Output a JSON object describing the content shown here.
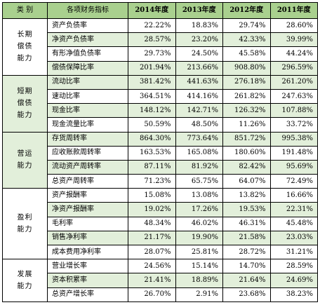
{
  "header": {
    "category": "类  别",
    "indicator": "各项财务指标",
    "years": [
      "2014年度",
      "2013年度",
      "2012年度",
      "2011年度"
    ]
  },
  "groups": [
    {
      "category": "长期偿债能力",
      "rows": [
        {
          "name": "资产负债率",
          "values": [
            "22.22%",
            "18.83%",
            "29.74%",
            "28.60%"
          ]
        },
        {
          "name": "净资产负债率",
          "values": [
            "28.57%",
            "23.20%",
            "42.33%",
            "39.99%"
          ]
        },
        {
          "name": "有形净值负债率",
          "values": [
            "29.73%",
            "24.50%",
            "45.58%",
            "44.24%"
          ]
        },
        {
          "name": "偿债保障比率",
          "values": [
            "201.94%",
            "213.66%",
            "908.80%",
            "296.59%"
          ]
        }
      ]
    },
    {
      "category": "短期偿债能力",
      "rows": [
        {
          "name": "流动比率",
          "values": [
            "381.42%",
            "441.63%",
            "276.18%",
            "261.20%"
          ]
        },
        {
          "name": "速动比率",
          "values": [
            "364.51%",
            "414.16%",
            "261.82%",
            "247.63%"
          ]
        },
        {
          "name": "现金比率",
          "values": [
            "148.12%",
            "142.71%",
            "126.32%",
            "107.88%"
          ]
        },
        {
          "name": "现金流量比率",
          "values": [
            "50.59%",
            "48.50%",
            "11.26%",
            "33.72%"
          ]
        }
      ]
    },
    {
      "category": "营运能力",
      "rows": [
        {
          "name": "存货周转率",
          "values": [
            "864.30%",
            "773.64%",
            "851.72%",
            "995.38%"
          ]
        },
        {
          "name": "应收账款周转率",
          "values": [
            "163.53%",
            "165.08%",
            "180.60%",
            "191.48%"
          ]
        },
        {
          "name": "流动资产周转率",
          "values": [
            "87.11%",
            "81.92%",
            "82.42%",
            "95.69%"
          ]
        },
        {
          "name": "总资产周转率",
          "values": [
            "71.23%",
            "65.75%",
            "64.07%",
            "72.49%"
          ]
        }
      ]
    },
    {
      "category": "盈利能力",
      "rows": [
        {
          "name": "资产报酬率",
          "values": [
            "15.08%",
            "13.08%",
            "13.82%",
            "16.66%"
          ]
        },
        {
          "name": "净资产报酬率",
          "values": [
            "19.02%",
            "17.26%",
            "19.53%",
            "22.31%"
          ]
        },
        {
          "name": "毛利率",
          "values": [
            "48.34%",
            "46.02%",
            "46.31%",
            "45.48%"
          ]
        },
        {
          "name": "销售净利率",
          "values": [
            "21.17%",
            "19.90%",
            "21.58%",
            "23.03%"
          ]
        },
        {
          "name": "成本费用净利率",
          "values": [
            "28.07%",
            "25.81%",
            "28.72%",
            "31.21%"
          ]
        }
      ]
    },
    {
      "category": "发展能力",
      "rows": [
        {
          "name": "营业增长率",
          "values": [
            "24.56%",
            "15.14%",
            "14.70%",
            "28.59%"
          ]
        },
        {
          "name": "资本积累率",
          "values": [
            "21.41%",
            "18.89%",
            "21.64%",
            "24.69%"
          ]
        },
        {
          "name": "总资产增长率",
          "values": [
            "26.70%",
            "2.91%",
            "23.68%",
            "38.23%"
          ]
        }
      ]
    }
  ],
  "colors": {
    "header_bg": "#a9d08e",
    "shade_bg": "#e2efda",
    "border": "#000000"
  }
}
